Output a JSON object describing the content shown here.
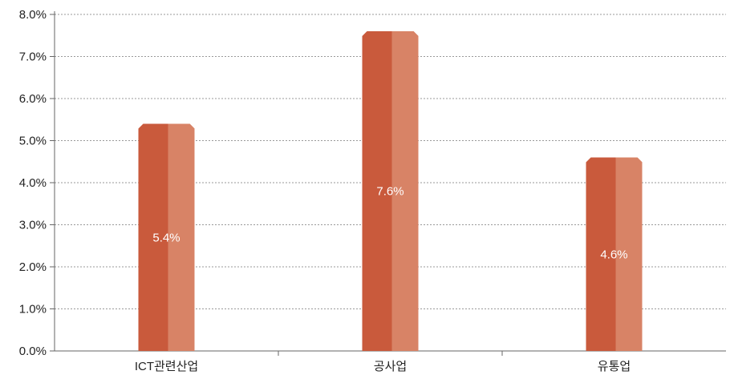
{
  "chart_data": {
    "type": "bar",
    "categories": [
      "ICT관련산업",
      "공사업",
      "유통업"
    ],
    "values": [
      5.4,
      7.6,
      4.6
    ],
    "data_labels": [
      "5.4%",
      "7.6%",
      "4.6%"
    ],
    "ylim": [
      0,
      8
    ],
    "yticks": [
      0,
      1,
      2,
      3,
      4,
      5,
      6,
      7,
      8
    ],
    "ytick_labels": [
      "0.0%",
      "1.0%",
      "2.0%",
      "3.0%",
      "4.0%",
      "5.0%",
      "6.0%",
      "7.0%",
      "8.0%"
    ],
    "grid": true,
    "legend": "none",
    "colors": {
      "bar_dark": "#c95a3c",
      "bar_light": "#d9876a",
      "grid": "#9a9a9a",
      "axis": "#666666"
    }
  }
}
